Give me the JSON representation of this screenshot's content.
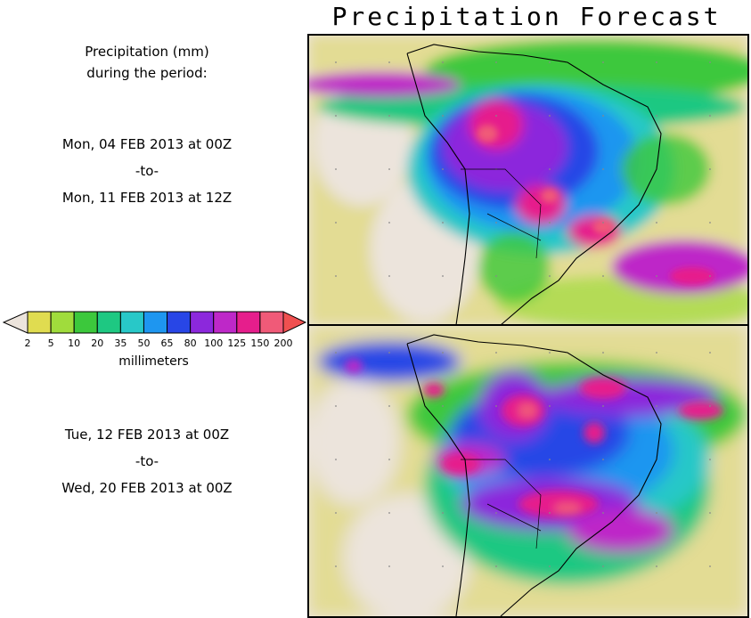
{
  "title": "Precipitation Forecast",
  "subtitle_line1": "Precipitation (mm)",
  "subtitle_line2": "during the period:",
  "period1": {
    "start": "Mon, 04 FEB 2013 at 00Z",
    "sep": "-to-",
    "end": "Mon, 11 FEB 2013 at 12Z"
  },
  "period2": {
    "start": "Tue, 12 FEB 2013 at 00Z",
    "sep": "-to-",
    "end": "Wed, 20 FEB 2013 at 00Z"
  },
  "colorbar": {
    "units": "millimeters",
    "ticks": [
      "2",
      "5",
      "10",
      "20",
      "35",
      "50",
      "65",
      "80",
      "100",
      "125",
      "150",
      "200"
    ],
    "colors": [
      "#e0dc50",
      "#a0dc3c",
      "#3cc83c",
      "#1ec882",
      "#28c8c8",
      "#1e96f0",
      "#2846e6",
      "#8c28dc",
      "#be28c8",
      "#e61e8c",
      "#f05a78"
    ],
    "under_color": "#ece4dc",
    "over_color": "#f05050"
  }
}
